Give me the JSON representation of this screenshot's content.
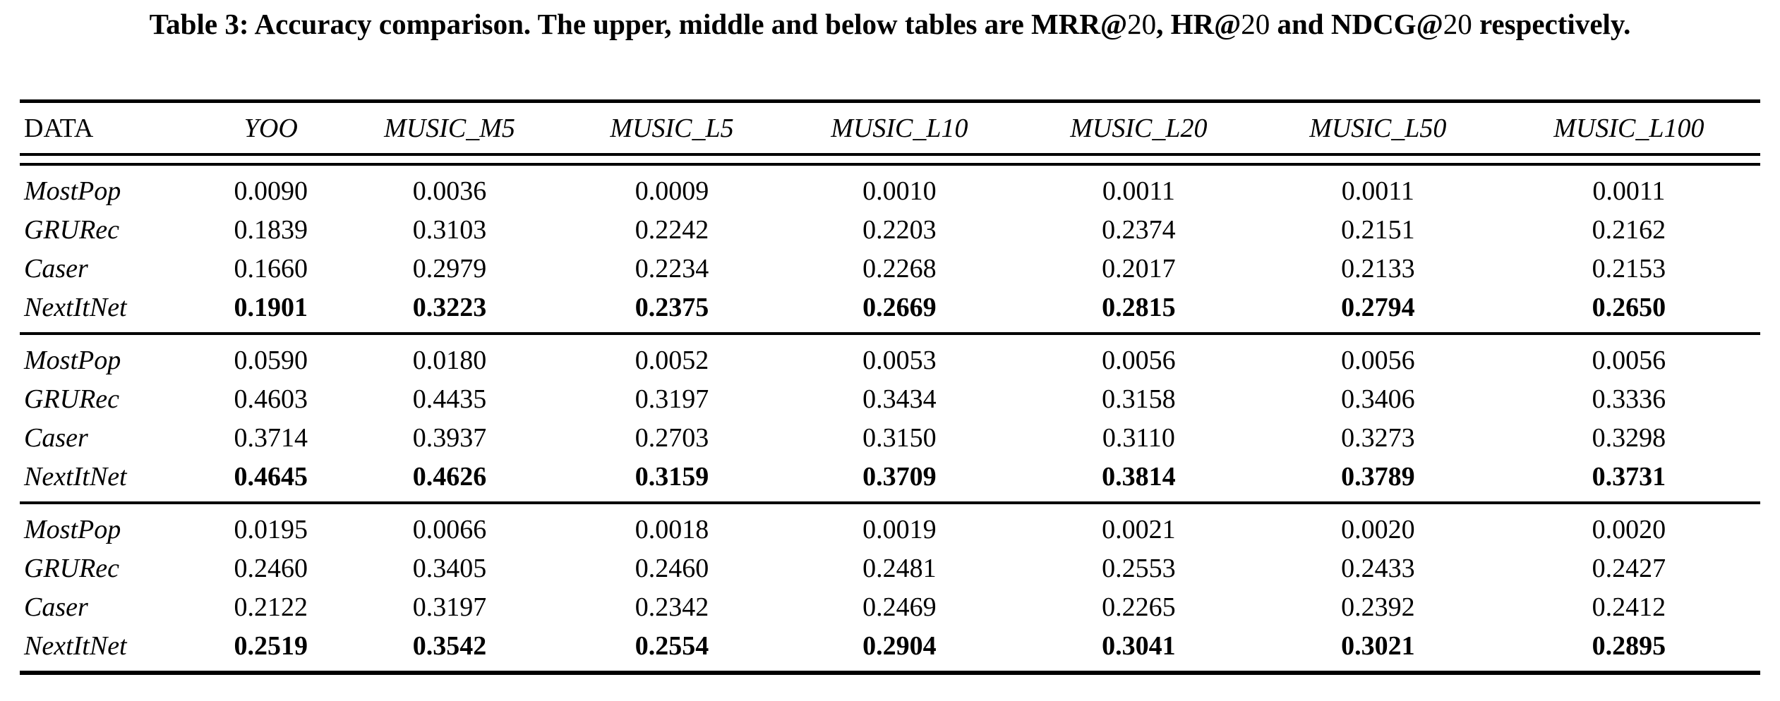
{
  "caption": {
    "label": "Table 3:",
    "full_text": "Table 3: Accuracy comparison. The upper, middle and below tables are MRR@20, HR@20 and NDCG@20 respectively.",
    "segments": [
      {
        "text": "Table 3: Accuracy comparison. The upper, middle and below tables are MRR@",
        "bold": true
      },
      {
        "text": "20",
        "bold": false
      },
      {
        "text": ", HR@",
        "bold": true
      },
      {
        "text": "20",
        "bold": false
      },
      {
        "text": " and NDCG@",
        "bold": true
      },
      {
        "text": "20",
        "bold": false
      },
      {
        "text": " respectively.",
        "bold": true
      }
    ]
  },
  "table": {
    "columns": [
      "DATA",
      "YOO",
      "MUSIC_M5",
      "MUSIC_L5",
      "MUSIC_L10",
      "MUSIC_L20",
      "MUSIC_L50",
      "MUSIC_L100"
    ],
    "sections": [
      {
        "metric": "MRR@20",
        "rows": [
          {
            "model": "MostPop",
            "best": false,
            "values": [
              "0.0090",
              "0.0036",
              "0.0009",
              "0.0010",
              "0.0011",
              "0.0011",
              "0.0011"
            ]
          },
          {
            "model": "GRURec",
            "best": false,
            "values": [
              "0.1839",
              "0.3103",
              "0.2242",
              "0.2203",
              "0.2374",
              "0.2151",
              "0.2162"
            ]
          },
          {
            "model": "Caser",
            "best": false,
            "values": [
              "0.1660",
              "0.2979",
              "0.2234",
              "0.2268",
              "0.2017",
              "0.2133",
              "0.2153"
            ]
          },
          {
            "model": "NextItNet",
            "best": true,
            "values": [
              "0.1901",
              "0.3223",
              "0.2375",
              "0.2669",
              "0.2815",
              "0.2794",
              "0.2650"
            ]
          }
        ]
      },
      {
        "metric": "HR@20",
        "rows": [
          {
            "model": "MostPop",
            "best": false,
            "values": [
              "0.0590",
              "0.0180",
              "0.0052",
              "0.0053",
              "0.0056",
              "0.0056",
              "0.0056"
            ]
          },
          {
            "model": "GRURec",
            "best": false,
            "values": [
              "0.4603",
              "0.4435",
              "0.3197",
              "0.3434",
              "0.3158",
              "0.3406",
              "0.3336"
            ]
          },
          {
            "model": "Caser",
            "best": false,
            "values": [
              "0.3714",
              "0.3937",
              "0.2703",
              "0.3150",
              "0.3110",
              "0.3273",
              "0.3298"
            ]
          },
          {
            "model": "NextItNet",
            "best": true,
            "values": [
              "0.4645",
              "0.4626",
              "0.3159",
              "0.3709",
              "0.3814",
              "0.3789",
              "0.3731"
            ]
          }
        ]
      },
      {
        "metric": "NDCG@20",
        "rows": [
          {
            "model": "MostPop",
            "best": false,
            "values": [
              "0.0195",
              "0.0066",
              "0.0018",
              "0.0019",
              "0.0021",
              "0.0020",
              "0.0020"
            ]
          },
          {
            "model": "GRURec",
            "best": false,
            "values": [
              "0.2460",
              "0.3405",
              "0.2460",
              "0.2481",
              "0.2553",
              "0.2433",
              "0.2427"
            ]
          },
          {
            "model": "Caser",
            "best": false,
            "values": [
              "0.2122",
              "0.3197",
              "0.2342",
              "0.2469",
              "0.2265",
              "0.2392",
              "0.2412"
            ]
          },
          {
            "model": "NextItNet",
            "best": true,
            "values": [
              "0.2519",
              "0.3542",
              "0.2554",
              "0.2904",
              "0.3041",
              "0.3021",
              "0.2895"
            ]
          }
        ]
      }
    ]
  },
  "colors": {
    "text": "#000000",
    "background": "#ffffff",
    "rule": "#000000"
  }
}
